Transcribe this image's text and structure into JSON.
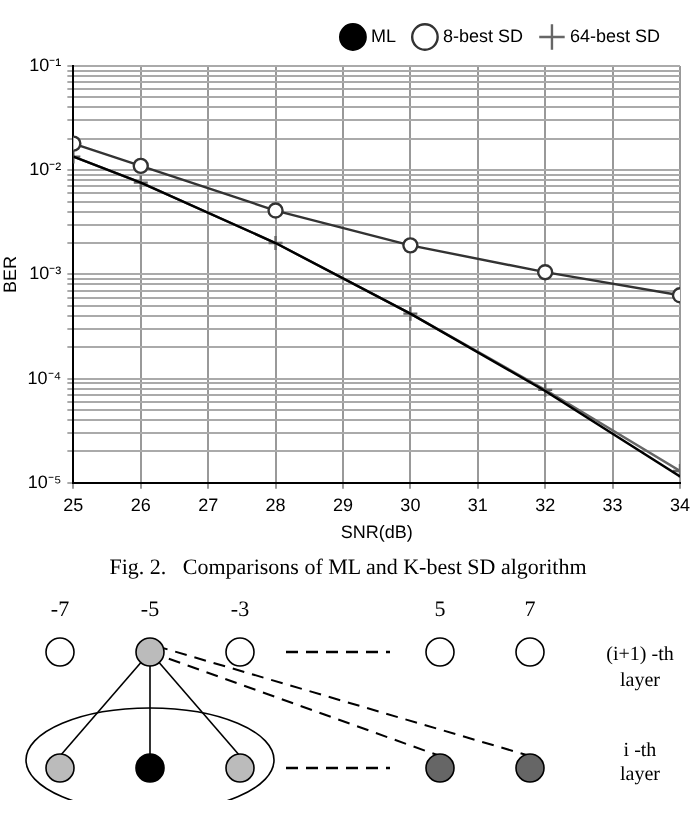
{
  "chart_data": {
    "type": "line",
    "xlabel": "SNR(dB)",
    "ylabel": "BER",
    "x": [
      25,
      26,
      28,
      30,
      32,
      34
    ],
    "series": [
      {
        "name": "ML",
        "color": "#000000",
        "marker": "none",
        "values": [
          0.0135,
          0.0076,
          0.002,
          0.00042,
          7.6e-05,
          1.15e-05
        ]
      },
      {
        "name": "8-best SD",
        "color": "#333333",
        "marker": "circle",
        "values": [
          0.018,
          0.011,
          0.0041,
          0.0019,
          0.00105,
          0.00063
        ]
      },
      {
        "name": "64-best SD",
        "color": "#666666",
        "marker": "cross",
        "values": [
          0.0135,
          0.0076,
          0.002,
          0.00042,
          7.8e-05,
          1.3e-05
        ]
      }
    ],
    "xlim": [
      25,
      34
    ],
    "xticks": [
      25,
      26,
      27,
      28,
      29,
      30,
      31,
      32,
      33,
      34
    ],
    "ylim": [
      1e-05,
      0.1
    ],
    "yticks": [
      {
        "value": 1e-05,
        "label": "10⁻⁵"
      },
      {
        "value": 2e-05,
        "label": null
      },
      {
        "value": 3e-05,
        "label": null
      },
      {
        "value": 4e-05,
        "label": null
      },
      {
        "value": 5e-05,
        "label": null
      },
      {
        "value": 6e-05,
        "label": null
      },
      {
        "value": 7e-05,
        "label": null
      },
      {
        "value": 8e-05,
        "label": null
      },
      {
        "value": 9e-05,
        "label": null
      },
      {
        "value": 0.0001,
        "label": "10⁻⁴"
      },
      {
        "value": 0.0002,
        "label": null
      },
      {
        "value": 0.0003,
        "label": null
      },
      {
        "value": 0.0004,
        "label": null
      },
      {
        "value": 0.0005,
        "label": null
      },
      {
        "value": 0.0006,
        "label": null
      },
      {
        "value": 0.0007,
        "label": null
      },
      {
        "value": 0.0008,
        "label": null
      },
      {
        "value": 0.0009,
        "label": null
      },
      {
        "value": 0.001,
        "label": "10⁻³"
      },
      {
        "value": 0.002,
        "label": null
      },
      {
        "value": 0.003,
        "label": null
      },
      {
        "value": 0.004,
        "label": null
      },
      {
        "value": 0.005,
        "label": null
      },
      {
        "value": 0.006,
        "label": null
      },
      {
        "value": 0.007,
        "label": null
      },
      {
        "value": 0.008,
        "label": null
      },
      {
        "value": 0.009,
        "label": null
      },
      {
        "value": 0.01,
        "label": "10⁻²"
      },
      {
        "value": 0.02,
        "label": null
      },
      {
        "value": 0.03,
        "label": null
      },
      {
        "value": 0.04,
        "label": null
      },
      {
        "value": 0.05,
        "label": null
      },
      {
        "value": 0.06,
        "label": null
      },
      {
        "value": 0.07,
        "label": null
      },
      {
        "value": 0.08,
        "label": null
      },
      {
        "value": 0.09,
        "label": null
      },
      {
        "value": 0.1,
        "label": "10⁻¹"
      }
    ],
    "log": "y",
    "grid": true,
    "legend": "top right",
    "annotations": [
      "Fig. 2.   Comparisons of ML and K-best SD algorithm",
      "-7",
      "-5",
      "-3",
      "5",
      "7",
      "(i+1) -th",
      "layer",
      "i -th",
      "layer"
    ]
  }
}
